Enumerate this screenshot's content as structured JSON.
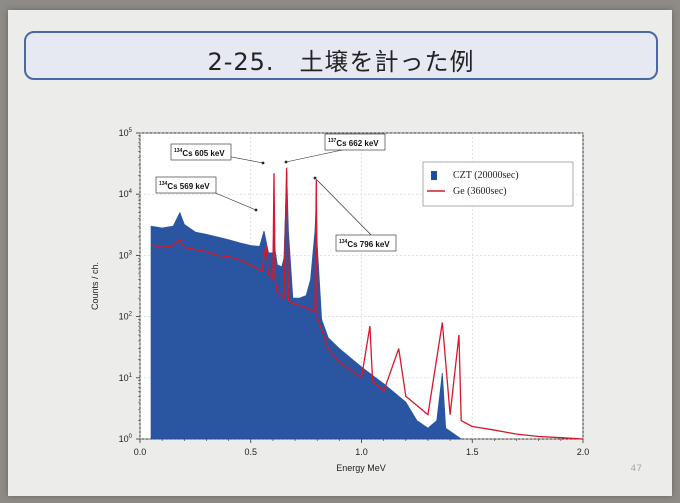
{
  "slide": {
    "title": "2-25.　土壌を計った例",
    "page_number": "47"
  },
  "chart_data": {
    "type": "line",
    "xlabel": "Energy MeV",
    "ylabel": "Counts / ch.",
    "xlim": [
      0,
      2.0
    ],
    "ylim": [
      1,
      100000
    ],
    "yscale": "log",
    "grid": true,
    "xticks": [
      "0.0",
      "0.5",
      "1.0",
      "1.5",
      "2.0"
    ],
    "yticks": [
      {
        "base": "10",
        "exp": "0"
      },
      {
        "base": "10",
        "exp": "1"
      },
      {
        "base": "10",
        "exp": "2"
      },
      {
        "base": "10",
        "exp": "3"
      },
      {
        "base": "10",
        "exp": "4"
      },
      {
        "base": "10",
        "exp": "5"
      }
    ],
    "legend_position": "top-right",
    "series": [
      {
        "name": "CZT",
        "legend_detail": "(20000sec)",
        "color": "#1f4e9c",
        "style": "filled-area",
        "x": [
          0.05,
          0.1,
          0.15,
          0.18,
          0.2,
          0.25,
          0.3,
          0.35,
          0.4,
          0.45,
          0.5,
          0.54,
          0.56,
          0.58,
          0.6,
          0.604,
          0.61,
          0.62,
          0.64,
          0.65,
          0.66,
          0.662,
          0.67,
          0.69,
          0.72,
          0.75,
          0.77,
          0.79,
          0.796,
          0.8,
          0.82,
          0.85,
          0.9,
          1.0,
          1.1,
          1.2,
          1.25,
          1.3,
          1.34,
          1.365,
          1.38,
          1.45
        ],
        "y": [
          3000,
          2800,
          3000,
          5000,
          3200,
          2400,
          2200,
          2000,
          1800,
          1600,
          1450,
          1400,
          2500,
          1100,
          1100,
          3500,
          1200,
          700,
          650,
          900,
          12000,
          25000,
          2500,
          200,
          200,
          220,
          400,
          2500,
          7000,
          1500,
          90,
          45,
          30,
          15,
          8,
          4,
          2,
          1.5,
          2,
          12,
          1.5,
          1
        ]
      },
      {
        "name": "Ge",
        "legend_detail": "(3600sec)",
        "color": "#d8182a",
        "style": "line",
        "x": [
          0.05,
          0.1,
          0.15,
          0.18,
          0.2,
          0.25,
          0.3,
          0.35,
          0.4,
          0.45,
          0.5,
          0.55,
          0.569,
          0.58,
          0.6,
          0.605,
          0.61,
          0.62,
          0.65,
          0.662,
          0.67,
          0.7,
          0.75,
          0.79,
          0.796,
          0.8,
          0.85,
          0.9,
          1.0,
          1.038,
          1.05,
          1.1,
          1.168,
          1.2,
          1.3,
          1.365,
          1.4,
          1.44,
          1.45,
          1.5,
          1.6,
          1.7,
          1.8,
          1.9,
          2.0
        ],
        "y": [
          1500,
          1350,
          1450,
          1800,
          1350,
          1250,
          1150,
          1000,
          950,
          850,
          700,
          550,
          1500,
          480,
          420,
          22000,
          400,
          250,
          200,
          27000,
          180,
          160,
          140,
          120,
          17000,
          100,
          30,
          18,
          10,
          70,
          9,
          6,
          30,
          5,
          2.5,
          80,
          2.5,
          50,
          2,
          1.6,
          1.4,
          1.2,
          1.1,
          1.05,
          1
        ]
      }
    ],
    "annotations": [
      {
        "mass": "134",
        "element": "Cs",
        "energy": "605 keV",
        "peak_x": 0.605
      },
      {
        "mass": "137",
        "element": "Cs",
        "energy": "662 keV",
        "peak_x": 0.662
      },
      {
        "mass": "134",
        "element": "Cs",
        "energy": "569 keV",
        "peak_x": 0.569
      },
      {
        "mass": "134",
        "element": "Cs",
        "energy": "796 keV",
        "peak_x": 0.796
      }
    ]
  }
}
